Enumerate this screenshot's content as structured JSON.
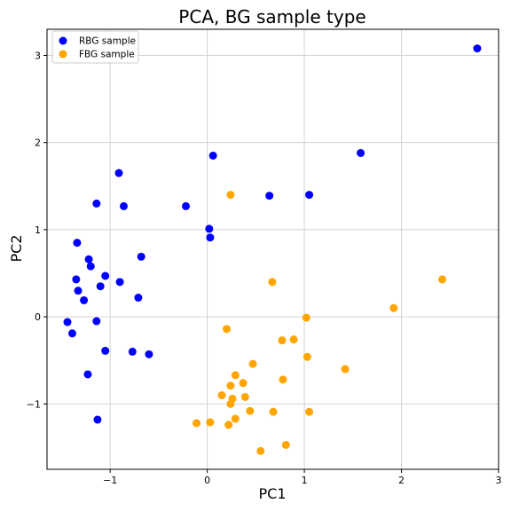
{
  "chart_data": {
    "type": "scatter",
    "title": "PCA, BG sample type",
    "xlabel": "PC1",
    "ylabel": "PC2",
    "xlim": [
      -1.65,
      3.0
    ],
    "ylim": [
      -1.75,
      3.3
    ],
    "xticks": [
      -1,
      0,
      1,
      2,
      3
    ],
    "yticks": [
      -1,
      0,
      1,
      2,
      3
    ],
    "xtick_labels": [
      "−1",
      "0",
      "1",
      "2",
      "3"
    ],
    "ytick_labels": [
      "−1",
      "0",
      "1",
      "2",
      "3"
    ],
    "grid": true,
    "legend_position": "top-left",
    "series": [
      {
        "name": "RBG sample",
        "color": "#0000ff",
        "points": [
          {
            "x": 2.78,
            "y": 3.08
          },
          {
            "x": 1.58,
            "y": 1.88
          },
          {
            "x": 1.05,
            "y": 1.4
          },
          {
            "x": 0.64,
            "y": 1.39
          },
          {
            "x": 0.06,
            "y": 1.85
          },
          {
            "x": 0.02,
            "y": 1.01
          },
          {
            "x": 0.03,
            "y": 0.91
          },
          {
            "x": -0.22,
            "y": 1.27
          },
          {
            "x": -0.91,
            "y": 1.65
          },
          {
            "x": -1.14,
            "y": 1.3
          },
          {
            "x": -0.86,
            "y": 1.27
          },
          {
            "x": -1.34,
            "y": 0.85
          },
          {
            "x": -1.22,
            "y": 0.66
          },
          {
            "x": -1.2,
            "y": 0.58
          },
          {
            "x": -0.68,
            "y": 0.69
          },
          {
            "x": -1.05,
            "y": 0.47
          },
          {
            "x": -1.35,
            "y": 0.43
          },
          {
            "x": -0.9,
            "y": 0.4
          },
          {
            "x": -1.1,
            "y": 0.35
          },
          {
            "x": -1.33,
            "y": 0.3
          },
          {
            "x": -0.71,
            "y": 0.22
          },
          {
            "x": -1.27,
            "y": 0.19
          },
          {
            "x": -1.44,
            "y": -0.06
          },
          {
            "x": -1.14,
            "y": -0.05
          },
          {
            "x": -1.39,
            "y": -0.19
          },
          {
            "x": -1.05,
            "y": -0.39
          },
          {
            "x": -0.77,
            "y": -0.4
          },
          {
            "x": -0.6,
            "y": -0.43
          },
          {
            "x": -1.23,
            "y": -0.66
          },
          {
            "x": -1.13,
            "y": -1.18
          }
        ]
      },
      {
        "name": "FBG sample",
        "color": "#ffa500",
        "points": [
          {
            "x": 0.24,
            "y": 1.4
          },
          {
            "x": 2.42,
            "y": 0.43
          },
          {
            "x": 0.67,
            "y": 0.4
          },
          {
            "x": 1.92,
            "y": 0.1
          },
          {
            "x": 1.02,
            "y": -0.01
          },
          {
            "x": 0.2,
            "y": -0.14
          },
          {
            "x": 0.77,
            "y": -0.27
          },
          {
            "x": 0.89,
            "y": -0.26
          },
          {
            "x": 1.03,
            "y": -0.46
          },
          {
            "x": 0.47,
            "y": -0.54
          },
          {
            "x": 1.42,
            "y": -0.6
          },
          {
            "x": 0.29,
            "y": -0.67
          },
          {
            "x": 0.78,
            "y": -0.72
          },
          {
            "x": 0.37,
            "y": -0.76
          },
          {
            "x": 0.24,
            "y": -0.79
          },
          {
            "x": 0.15,
            "y": -0.9
          },
          {
            "x": 0.39,
            "y": -0.92
          },
          {
            "x": 0.26,
            "y": -0.94
          },
          {
            "x": 0.24,
            "y": -1.0
          },
          {
            "x": 0.44,
            "y": -1.08
          },
          {
            "x": 0.68,
            "y": -1.09
          },
          {
            "x": 1.05,
            "y": -1.09
          },
          {
            "x": 0.29,
            "y": -1.17
          },
          {
            "x": 0.03,
            "y": -1.21
          },
          {
            "x": -0.11,
            "y": -1.22
          },
          {
            "x": 0.22,
            "y": -1.24
          },
          {
            "x": 0.81,
            "y": -1.47
          },
          {
            "x": 0.55,
            "y": -1.54
          }
        ]
      }
    ]
  }
}
